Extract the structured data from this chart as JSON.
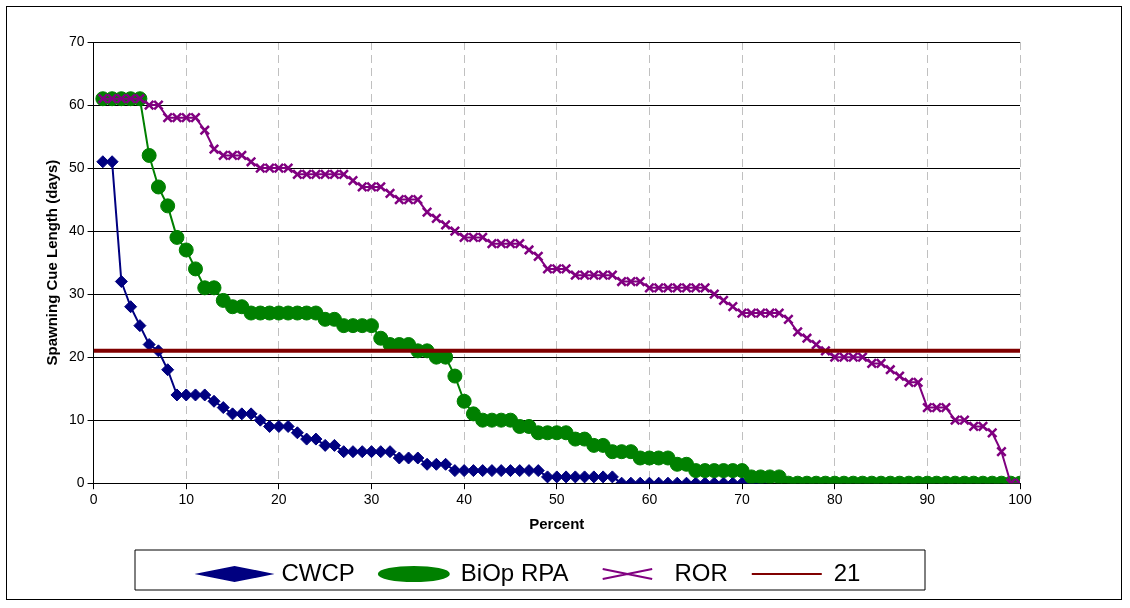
{
  "chart_data": {
    "type": "line",
    "xlabel": "Percent",
    "ylabel": "Spawning Cue Length (days)",
    "xlim": [
      0,
      100
    ],
    "xticks": [
      0,
      10,
      20,
      30,
      40,
      50,
      60,
      70,
      80,
      90,
      100
    ],
    "ylim": [
      0,
      70
    ],
    "yticks": [
      0,
      10,
      20,
      30,
      40,
      50,
      60,
      70
    ],
    "grid": true,
    "legend": "bottom",
    "series": [
      {
        "name": "CWCP",
        "color": "#000080",
        "marker": "diamond",
        "x": [
          1,
          2,
          3,
          4,
          5,
          6,
          7,
          8,
          9,
          10,
          11,
          12,
          13,
          14,
          15,
          16,
          17,
          18,
          19,
          20,
          21,
          22,
          23,
          24,
          25,
          26,
          27,
          28,
          29,
          30,
          31,
          32,
          33,
          34,
          35,
          36,
          37,
          38,
          39,
          40,
          41,
          42,
          43,
          44,
          45,
          46,
          47,
          48,
          49,
          50,
          51,
          52,
          53,
          54,
          55,
          56,
          57,
          58,
          59,
          60,
          61,
          62,
          63,
          64,
          65,
          66,
          67,
          68,
          69,
          70,
          71,
          72
        ],
        "values": [
          51,
          51,
          32,
          28,
          25,
          22,
          21,
          18,
          14,
          14,
          14,
          14,
          13,
          12,
          11,
          11,
          11,
          10,
          9,
          9,
          9,
          8,
          7,
          7,
          6,
          6,
          5,
          5,
          5,
          5,
          5,
          5,
          4,
          4,
          4,
          3,
          3,
          3,
          2,
          2,
          2,
          2,
          2,
          2,
          2,
          2,
          2,
          2,
          1,
          1,
          1,
          1,
          1,
          1,
          1,
          1,
          0,
          0,
          0,
          0,
          0,
          0,
          0,
          0,
          0,
          0,
          0,
          0,
          0,
          0,
          0,
          0
        ]
      },
      {
        "name": "BiOp RPA",
        "color": "#008000",
        "marker": "circle",
        "x": [
          1,
          2,
          3,
          4,
          5,
          6,
          7,
          8,
          9,
          10,
          11,
          12,
          13,
          14,
          15,
          16,
          17,
          18,
          19,
          20,
          21,
          22,
          23,
          24,
          25,
          26,
          27,
          28,
          29,
          30,
          31,
          32,
          33,
          34,
          35,
          36,
          37,
          38,
          39,
          40,
          41,
          42,
          43,
          44,
          45,
          46,
          47,
          48,
          49,
          50,
          51,
          52,
          53,
          54,
          55,
          56,
          57,
          58,
          59,
          60,
          61,
          62,
          63,
          64,
          65,
          66,
          67,
          68,
          69,
          70,
          71,
          72,
          73,
          74,
          75,
          76,
          77,
          78,
          79,
          80,
          81,
          82,
          83,
          84,
          85,
          86,
          87,
          88,
          89,
          90,
          91,
          92,
          93,
          94,
          95,
          96,
          97,
          98,
          99,
          100
        ],
        "values": [
          61,
          61,
          61,
          61,
          61,
          52,
          47,
          44,
          39,
          37,
          34,
          31,
          31,
          29,
          28,
          28,
          27,
          27,
          27,
          27,
          27,
          27,
          27,
          27,
          26,
          26,
          25,
          25,
          25,
          25,
          23,
          22,
          22,
          22,
          21,
          21,
          20,
          20,
          17,
          13,
          11,
          10,
          10,
          10,
          10,
          9,
          9,
          8,
          8,
          8,
          8,
          7,
          7,
          6,
          6,
          5,
          5,
          5,
          4,
          4,
          4,
          4,
          3,
          3,
          2,
          2,
          2,
          2,
          2,
          2,
          1,
          1,
          1,
          1,
          0,
          0,
          0,
          0,
          0,
          0,
          0,
          0,
          0,
          0,
          0,
          0,
          0,
          0,
          0,
          0,
          0,
          0,
          0,
          0,
          0,
          0,
          0,
          0,
          0,
          0
        ]
      },
      {
        "name": "ROR",
        "color": "#800080",
        "marker": "cross",
        "x": [
          1,
          2,
          3,
          4,
          5,
          6,
          7,
          8,
          9,
          10,
          11,
          12,
          13,
          14,
          15,
          16,
          17,
          18,
          19,
          20,
          21,
          22,
          23,
          24,
          25,
          26,
          27,
          28,
          29,
          30,
          31,
          32,
          33,
          34,
          35,
          36,
          37,
          38,
          39,
          40,
          41,
          42,
          43,
          44,
          45,
          46,
          47,
          48,
          49,
          50,
          51,
          52,
          53,
          54,
          55,
          56,
          57,
          58,
          59,
          60,
          61,
          62,
          63,
          64,
          65,
          66,
          67,
          68,
          69,
          70,
          71,
          72,
          73,
          74,
          75,
          76,
          77,
          78,
          79,
          80,
          81,
          82,
          83,
          84,
          85,
          86,
          87,
          88,
          89,
          90,
          91,
          92,
          93,
          94,
          95,
          96,
          97,
          98,
          99,
          100
        ],
        "values": [
          61,
          61,
          61,
          61,
          61,
          60,
          60,
          58,
          58,
          58,
          58,
          56,
          53,
          52,
          52,
          52,
          51,
          50,
          50,
          50,
          50,
          49,
          49,
          49,
          49,
          49,
          49,
          48,
          47,
          47,
          47,
          46,
          45,
          45,
          45,
          43,
          42,
          41,
          40,
          39,
          39,
          39,
          38,
          38,
          38,
          38,
          37,
          36,
          34,
          34,
          34,
          33,
          33,
          33,
          33,
          33,
          32,
          32,
          32,
          31,
          31,
          31,
          31,
          31,
          31,
          31,
          30,
          29,
          28,
          27,
          27,
          27,
          27,
          27,
          26,
          24,
          23,
          22,
          21,
          20,
          20,
          20,
          20,
          19,
          19,
          18,
          17,
          16,
          16,
          12,
          12,
          12,
          10,
          10,
          9,
          9,
          8,
          5,
          0,
          0
        ]
      },
      {
        "name": "21",
        "color": "#800000",
        "marker": "none",
        "x": [
          0,
          100
        ],
        "values": [
          21,
          21
        ]
      }
    ]
  }
}
